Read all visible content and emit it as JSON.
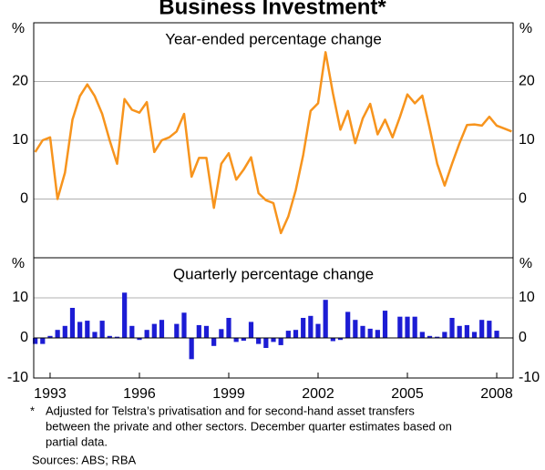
{
  "title": "Business Investment*",
  "chart_data": [
    {
      "type": "line",
      "subtitle": "Year-ended percentage change",
      "ylabel": "%",
      "xlim": [
        1992.45,
        2008.55
      ],
      "ylim": [
        -10,
        30
      ],
      "yticks": [
        0,
        10,
        20
      ],
      "grid": true,
      "x": [
        1992.5,
        1992.75,
        1993,
        1993.25,
        1993.5,
        1993.75,
        1994,
        1994.25,
        1994.5,
        1994.75,
        1995,
        1995.25,
        1995.5,
        1995.75,
        1996,
        1996.25,
        1996.5,
        1996.75,
        1997,
        1997.25,
        1997.5,
        1997.75,
        1998,
        1998.25,
        1998.5,
        1998.75,
        1999,
        1999.25,
        1999.5,
        1999.75,
        2000,
        2000.25,
        2000.5,
        2000.75,
        2001,
        2001.25,
        2001.5,
        2001.75,
        2002,
        2002.25,
        2002.5,
        2002.75,
        2003,
        2003.25,
        2003.5,
        2003.75,
        2004,
        2004.25,
        2004.5,
        2004.75,
        2005,
        2005.25,
        2005.5,
        2005.75,
        2006,
        2006.25,
        2006.5,
        2006.75,
        2007,
        2007.25,
        2007.5,
        2007.75,
        2008,
        2008.25,
        2008.5
      ],
      "series": [
        {
          "color": "#f7941d",
          "values": [
            8,
            10,
            10.5,
            0,
            4.5,
            13.5,
            17.5,
            19.5,
            17.5,
            14.5,
            10,
            6,
            17,
            15.2,
            14.7,
            16.5,
            8,
            10,
            10.5,
            11.5,
            14.5,
            3.8,
            7,
            7,
            -1.5,
            6,
            7.8,
            3.3,
            5,
            7.1,
            1,
            -0.2,
            -0.7,
            -5.8,
            -3,
            1.5,
            7.5,
            15,
            16.3,
            25,
            18,
            11.8,
            15,
            9.5,
            13.7,
            16.2,
            11,
            13.5,
            10.5,
            14,
            17.8,
            16.3,
            17.6,
            12,
            6,
            2.3,
            6,
            9.5,
            12.6,
            12.7,
            12.5,
            14,
            12.5,
            12,
            11.5
          ]
        }
      ]
    },
    {
      "type": "bar",
      "subtitle": "Quarterly percentage change",
      "ylabel": "%",
      "xlim": [
        1992.45,
        2008.55
      ],
      "xticks": [
        1993,
        1996,
        1999,
        2002,
        2005,
        2008
      ],
      "ylim": [
        -10,
        20
      ],
      "yticks": [
        -10,
        0,
        10
      ],
      "grid": true,
      "x": [
        1992.5,
        1992.75,
        1993,
        1993.25,
        1993.5,
        1993.75,
        1994,
        1994.25,
        1994.5,
        1994.75,
        1995,
        1995.25,
        1995.5,
        1995.75,
        1996,
        1996.25,
        1996.5,
        1996.75,
        1997,
        1997.25,
        1997.5,
        1997.75,
        1998,
        1998.25,
        1998.5,
        1998.75,
        1999,
        1999.25,
        1999.5,
        1999.75,
        2000,
        2000.25,
        2000.5,
        2000.75,
        2001,
        2001.25,
        2001.5,
        2001.75,
        2002,
        2002.25,
        2002.5,
        2002.75,
        2003,
        2003.25,
        2003.5,
        2003.75,
        2004,
        2004.25,
        2004.5,
        2004.75,
        2005,
        2005.25,
        2005.5,
        2005.75,
        2006,
        2006.25,
        2006.5,
        2006.75,
        2007,
        2007.25,
        2007.5,
        2007.75,
        2008
      ],
      "series": [
        {
          "color": "#1c1cd4",
          "values": [
            -1.5,
            -1.5,
            0.5,
            2,
            3,
            7.5,
            4,
            4.3,
            1.5,
            4.3,
            0.5,
            0.3,
            11.3,
            3,
            -0.5,
            2,
            3.5,
            4.5,
            0,
            3.5,
            6.3,
            -5.3,
            3.2,
            3,
            -2,
            2.2,
            5,
            -1,
            -0.7,
            4,
            -1.5,
            -2.5,
            -1,
            -1.8,
            1.8,
            2,
            5,
            5.5,
            3.5,
            9.5,
            -0.8,
            -0.5,
            6.5,
            4.5,
            3,
            2.3,
            2,
            6.8,
            0,
            5.3,
            5.3,
            5.3,
            1.5,
            0.5,
            0.3,
            1.5,
            5,
            3,
            3.2,
            1.5,
            4.5,
            4.3,
            1.8
          ]
        }
      ]
    }
  ],
  "notes": {
    "marker": "*",
    "lines": [
      "Adjusted for Telstra’s privatisation and for second-hand asset transfers",
      "between the private and other sectors. December quarter estimates based on",
      "partial data."
    ],
    "sources": "Sources: ABS; RBA"
  }
}
